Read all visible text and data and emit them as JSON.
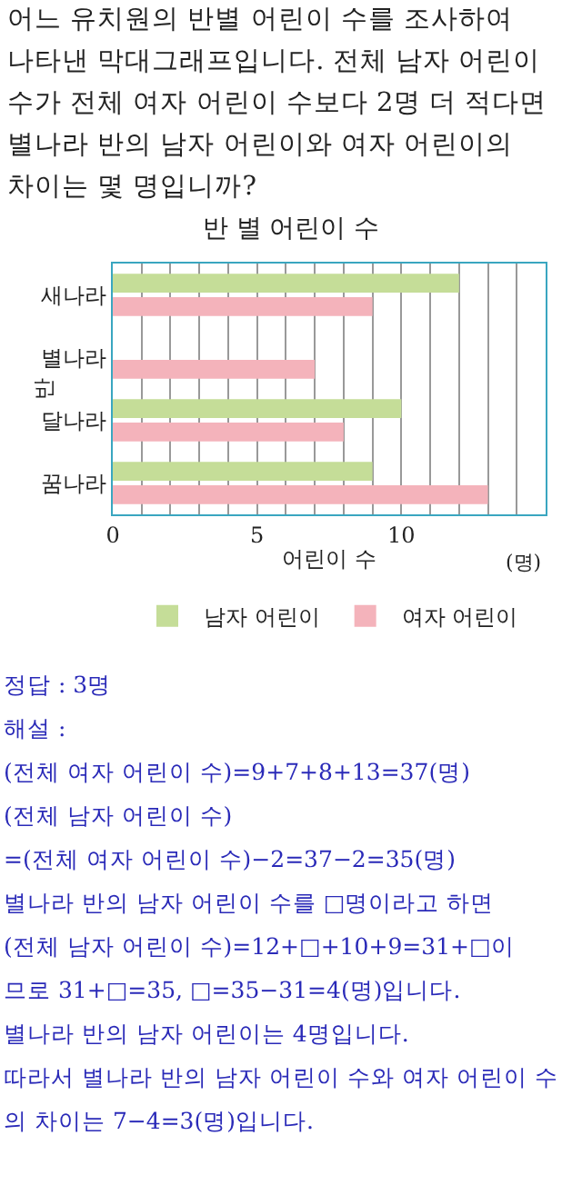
{
  "chart_data": {
    "type": "bar",
    "orientation": "horizontal",
    "title": "반 별 어린이 수",
    "xlabel": "어린이 수",
    "ylabel": "반",
    "categories": [
      "새나라",
      "별나라",
      "달나라",
      "꿈나라"
    ],
    "series": [
      {
        "name": "남자 어린이",
        "color": "#c5dd98",
        "values": [
          12,
          null,
          10,
          9
        ]
      },
      {
        "name": "여자 어린이",
        "color": "#f4b3bb",
        "values": [
          9,
          7,
          8,
          13
        ]
      }
    ],
    "xlim": [
      0,
      15
    ],
    "xticks": [
      0,
      {
        "value": 1,
        "label": null
      },
      {
        "value": 2,
        "label": null
      },
      {
        "value": 3,
        "label": null
      },
      {
        "value": 4,
        "label": null
      },
      5,
      {
        "value": 6,
        "label": null
      },
      {
        "value": 7,
        "label": null
      },
      {
        "value": 8,
        "label": null
      },
      {
        "value": 9,
        "label": null
      },
      10,
      {
        "value": 11,
        "label": null
      },
      {
        "value": 12,
        "label": null
      },
      {
        "value": 13,
        "label": null
      },
      {
        "value": 14,
        "label": null
      },
      {
        "value": 15,
        "label": null
      }
    ],
    "grid": "x",
    "legend": "bottom",
    "annotations": [
      "어느 유치원의 반별 어린이 수를 조사하여 나타낸 막대그래프입니다. 전체 남자 어린이 수가 전체 여자 어린이 수보다 2명 더 적다면 별나라 반의 남자 어린이와 여자 어린이의 차이는 몇 명입니까?",
      "(명)",
      "정답 : 3명",
      "해설 :",
      "(전체 여자 어린이 수)=9+7+8+13=37(명)",
      "(전체 남자 어린이 수)",
      "=(전체 여자 어린이 수)−2=37−2=35(명)",
      "별나라 반의 남자 어린이 수를 □명이라고 하면",
      "(전체 남자 어린이 수)=12+□+10+9=31+□이",
      "므로 31+□=35, □=35−31=4(명)입니다.",
      "별나라 반의 남자 어린이는 4명입니다.",
      "따라서 별나라 반의 남자 어린이 수와 여자 어린이 수",
      "의 차이는 7−4=3(명)입니다."
    ]
  }
}
